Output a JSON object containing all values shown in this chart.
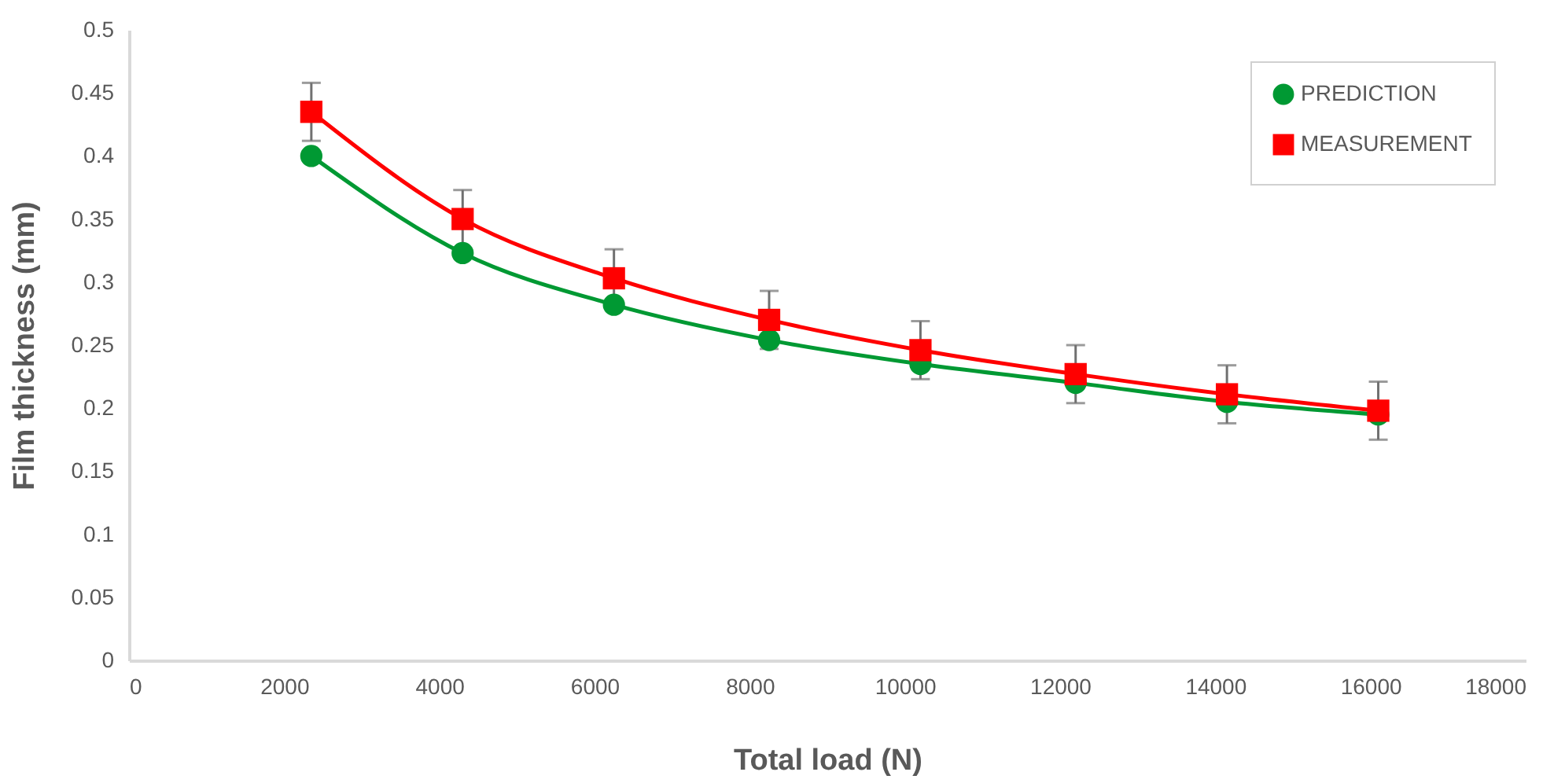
{
  "chart_data": {
    "type": "line",
    "xlabel": "Total load (N)",
    "ylabel": "Film thickness (mm)",
    "x": [
      2350,
      4300,
      6250,
      8250,
      10200,
      12200,
      14150,
      16100
    ],
    "series": [
      {
        "name": "PREDICTION",
        "color": "#009933",
        "marker": "circle",
        "values": [
          0.4,
          0.323,
          0.282,
          0.254,
          0.235,
          0.22,
          0.205,
          0.195
        ]
      },
      {
        "name": "MEASUREMENT",
        "color": "#ff0000",
        "marker": "square",
        "values": [
          0.435,
          0.35,
          0.303,
          0.27,
          0.246,
          0.227,
          0.211,
          0.198
        ],
        "errors": [
          0.023,
          0.023,
          0.023,
          0.023,
          0.023,
          0.023,
          0.023,
          0.023
        ]
      }
    ],
    "xlim": [
      0,
      18000
    ],
    "xticks": [
      0,
      2000,
      4000,
      6000,
      8000,
      10000,
      12000,
      14000,
      16000,
      18000
    ],
    "ylim": [
      0,
      0.5
    ],
    "yticks": [
      0,
      0.05,
      0.1,
      0.15,
      0.2,
      0.25,
      0.3,
      0.35,
      0.4,
      0.45,
      0.5
    ],
    "grid": false,
    "legend": "top right",
    "line_style": "solid"
  }
}
